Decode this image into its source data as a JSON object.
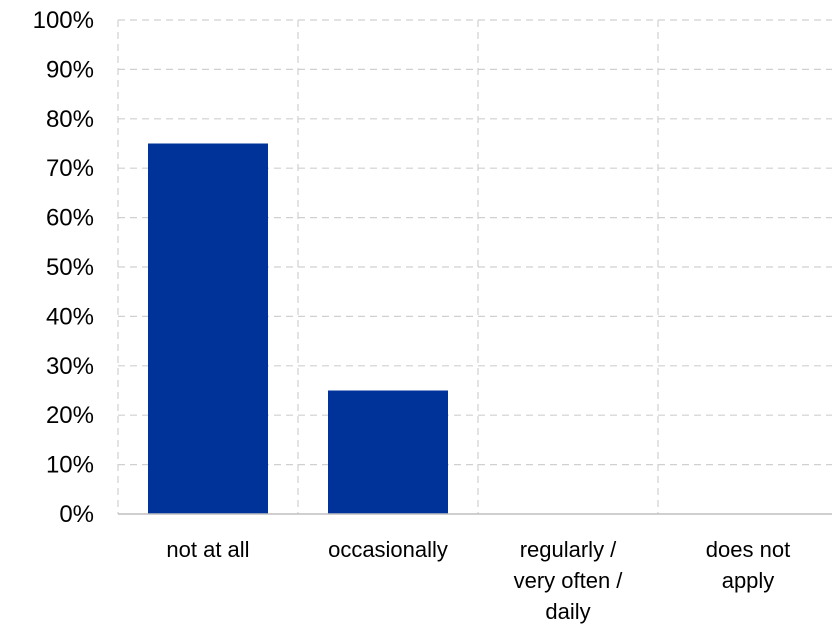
{
  "chart_data": {
    "type": "bar",
    "title": "",
    "xlabel": "",
    "ylabel": "",
    "categories": [
      [
        "not at all"
      ],
      [
        "occasionally"
      ],
      [
        "regularly /",
        "very often /",
        "daily"
      ],
      [
        "does not",
        "apply"
      ]
    ],
    "values": [
      75,
      25,
      0,
      0
    ],
    "ylim": [
      0,
      100
    ],
    "ytick_step": 10,
    "ytick_format": "percent",
    "grid": {
      "horizontal": true,
      "vertical": true,
      "style": "dashed",
      "color": "#d0d0d0"
    },
    "bar_color": "#003399",
    "legend": "none"
  }
}
